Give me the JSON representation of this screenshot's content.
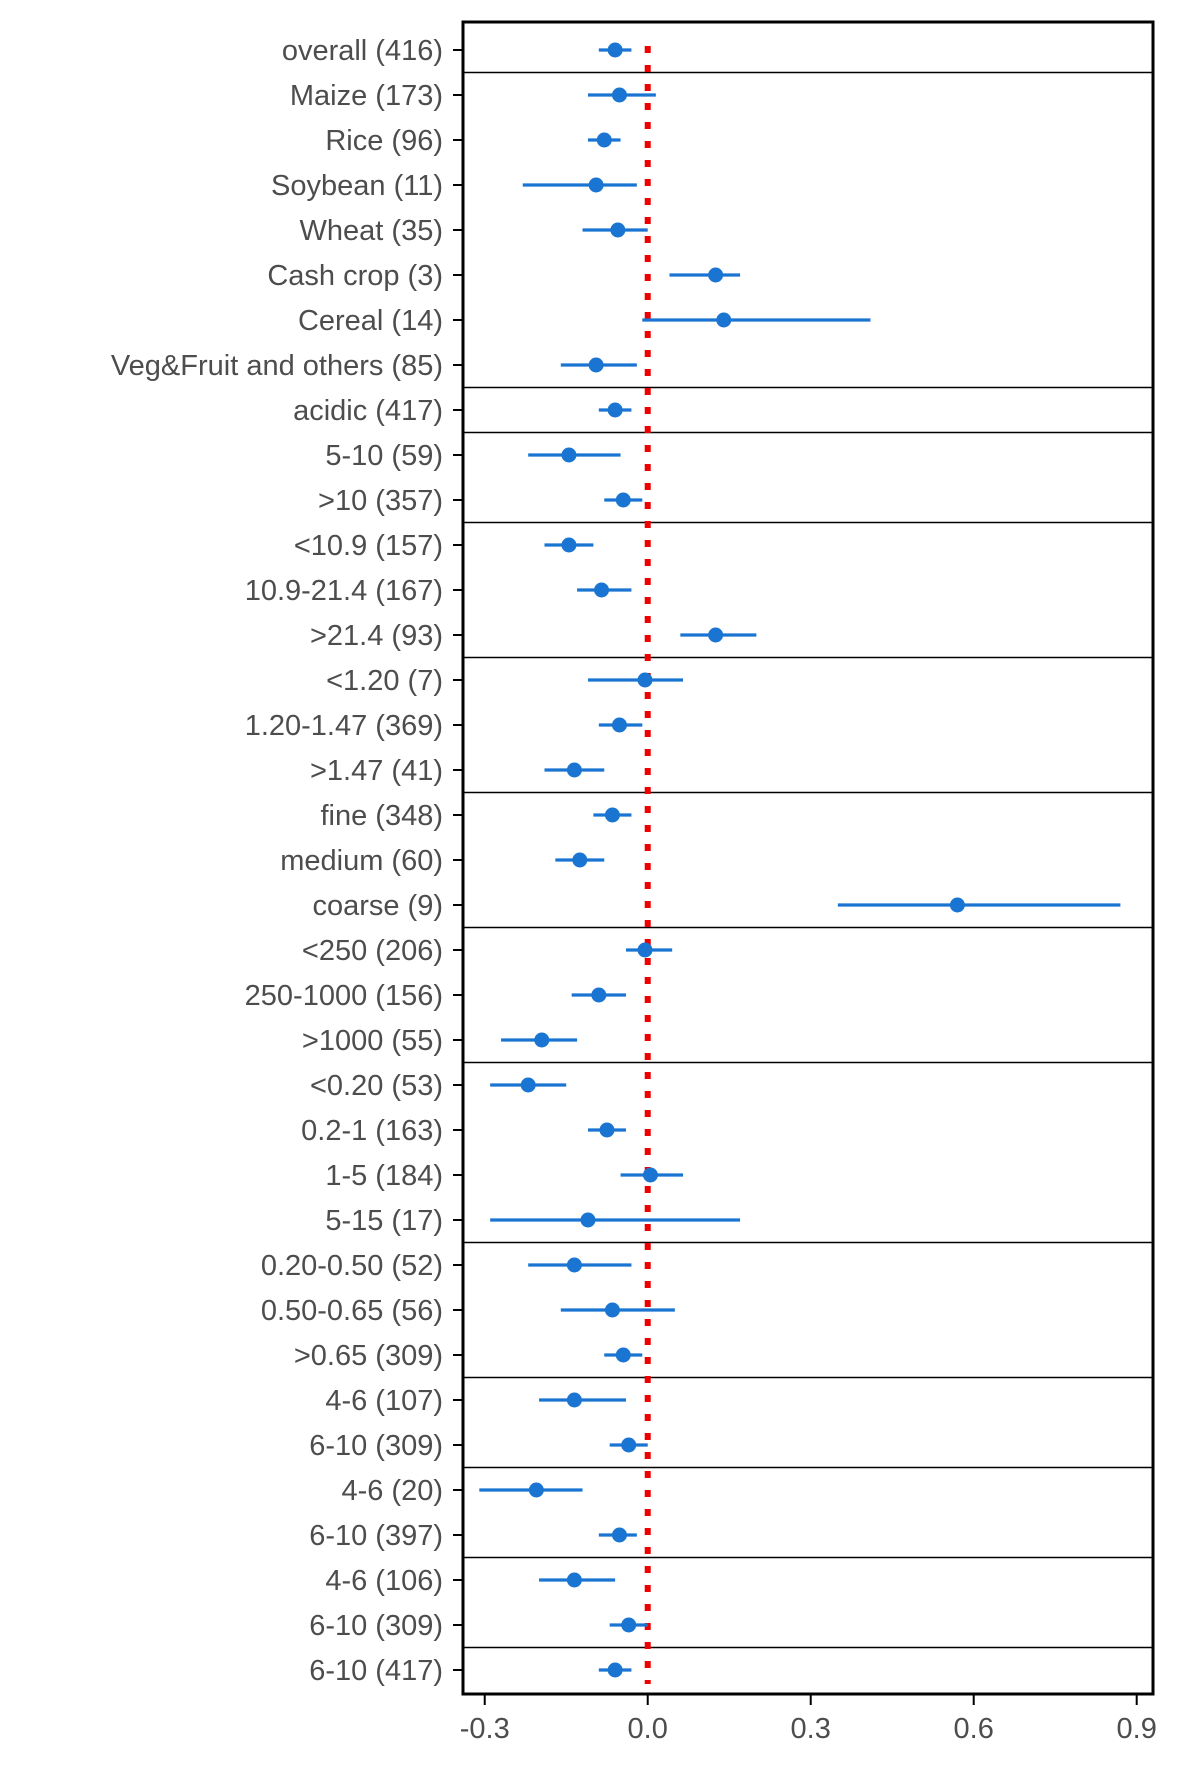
{
  "chart_data": {
    "type": "scatter",
    "title": "",
    "xlabel": "",
    "ylabel": "",
    "xlim": [
      -0.34,
      0.93
    ],
    "x_ticks": [
      -0.3,
      0.0,
      0.3,
      0.6,
      0.9
    ],
    "x_tick_labels": [
      "-0.3",
      "0.0",
      "0.3",
      "0.6",
      "0.9"
    ],
    "reference_line": 0,
    "colors": {
      "point": "#1a75d2",
      "reference": "#ee0000",
      "axis": "#000000",
      "label": "#4d4d4d"
    },
    "rows": [
      {
        "label": "overall (416)",
        "estimate": -0.06,
        "low": -0.09,
        "high": -0.03,
        "group": 0
      },
      {
        "label": "Maize (173)",
        "estimate": -0.052,
        "low": -0.11,
        "high": 0.015,
        "group": 1
      },
      {
        "label": "Rice (96)",
        "estimate": -0.08,
        "low": -0.11,
        "high": -0.05,
        "group": 1
      },
      {
        "label": "Soybean (11)",
        "estimate": -0.095,
        "low": -0.23,
        "high": -0.02,
        "group": 1
      },
      {
        "label": "Wheat (35)",
        "estimate": -0.055,
        "low": -0.12,
        "high": 0.0,
        "group": 1
      },
      {
        "label": "Cash crop (3)",
        "estimate": 0.125,
        "low": 0.04,
        "high": 0.17,
        "group": 1
      },
      {
        "label": "Cereal (14)",
        "estimate": 0.14,
        "low": -0.01,
        "high": 0.41,
        "group": 1
      },
      {
        "label": "Veg&Fruit and others (85)",
        "estimate": -0.095,
        "low": -0.16,
        "high": -0.02,
        "group": 1
      },
      {
        "label": "acidic (417)",
        "estimate": -0.06,
        "low": -0.09,
        "high": -0.03,
        "group": 2
      },
      {
        "label": "5-10 (59)",
        "estimate": -0.145,
        "low": -0.22,
        "high": -0.05,
        "group": 3
      },
      {
        "label": ">10 (357)",
        "estimate": -0.045,
        "low": -0.08,
        "high": -0.01,
        "group": 3
      },
      {
        "label": "<10.9 (157)",
        "estimate": -0.145,
        "low": -0.19,
        "high": -0.1,
        "group": 4
      },
      {
        "label": "10.9-21.4 (167)",
        "estimate": -0.085,
        "low": -0.13,
        "high": -0.03,
        "group": 4
      },
      {
        "label": ">21.4 (93)",
        "estimate": 0.125,
        "low": 0.06,
        "high": 0.2,
        "group": 4
      },
      {
        "label": "<1.20 (7)",
        "estimate": -0.005,
        "low": -0.11,
        "high": 0.065,
        "group": 5
      },
      {
        "label": "1.20-1.47 (369)",
        "estimate": -0.052,
        "low": -0.09,
        "high": -0.01,
        "group": 5
      },
      {
        "label": ">1.47 (41)",
        "estimate": -0.135,
        "low": -0.19,
        "high": -0.08,
        "group": 5
      },
      {
        "label": "fine (348)",
        "estimate": -0.065,
        "low": -0.1,
        "high": -0.03,
        "group": 6
      },
      {
        "label": "medium (60)",
        "estimate": -0.125,
        "low": -0.17,
        "high": -0.08,
        "group": 6
      },
      {
        "label": "coarse (9)",
        "estimate": 0.57,
        "low": 0.35,
        "high": 0.87,
        "group": 6
      },
      {
        "label": "<250 (206)",
        "estimate": -0.005,
        "low": -0.04,
        "high": 0.045,
        "group": 7
      },
      {
        "label": "250-1000 (156)",
        "estimate": -0.09,
        "low": -0.14,
        "high": -0.04,
        "group": 7
      },
      {
        "label": ">1000 (55)",
        "estimate": -0.195,
        "low": -0.27,
        "high": -0.13,
        "group": 7
      },
      {
        "label": "<0.20 (53)",
        "estimate": -0.22,
        "low": -0.29,
        "high": -0.15,
        "group": 8
      },
      {
        "label": "0.2-1 (163)",
        "estimate": -0.075,
        "low": -0.11,
        "high": -0.04,
        "group": 8
      },
      {
        "label": "1-5 (184)",
        "estimate": 0.005,
        "low": -0.05,
        "high": 0.065,
        "group": 8
      },
      {
        "label": "5-15 (17)",
        "estimate": -0.11,
        "low": -0.29,
        "high": 0.17,
        "group": 8
      },
      {
        "label": "0.20-0.50 (52)",
        "estimate": -0.135,
        "low": -0.22,
        "high": -0.03,
        "group": 9
      },
      {
        "label": "0.50-0.65 (56)",
        "estimate": -0.065,
        "low": -0.16,
        "high": 0.05,
        "group": 9
      },
      {
        "label": ">0.65 (309)",
        "estimate": -0.045,
        "low": -0.08,
        "high": -0.01,
        "group": 9
      },
      {
        "label": "4-6 (107)",
        "estimate": -0.135,
        "low": -0.2,
        "high": -0.04,
        "group": 10
      },
      {
        "label": "6-10 (309)",
        "estimate": -0.035,
        "low": -0.07,
        "high": 0.0,
        "group": 10
      },
      {
        "label": "4-6 (20)",
        "estimate": -0.205,
        "low": -0.31,
        "high": -0.12,
        "group": 11
      },
      {
        "label": "6-10 (397)",
        "estimate": -0.052,
        "low": -0.09,
        "high": -0.02,
        "group": 11
      },
      {
        "label": "4-6 (106)",
        "estimate": -0.135,
        "low": -0.2,
        "high": -0.06,
        "group": 12
      },
      {
        "label": "6-10 (309)",
        "estimate": -0.035,
        "low": -0.07,
        "high": 0.0,
        "group": 12
      },
      {
        "label": "6-10 (417)",
        "estimate": -0.06,
        "low": -0.09,
        "high": -0.03,
        "group": 13
      }
    ]
  }
}
